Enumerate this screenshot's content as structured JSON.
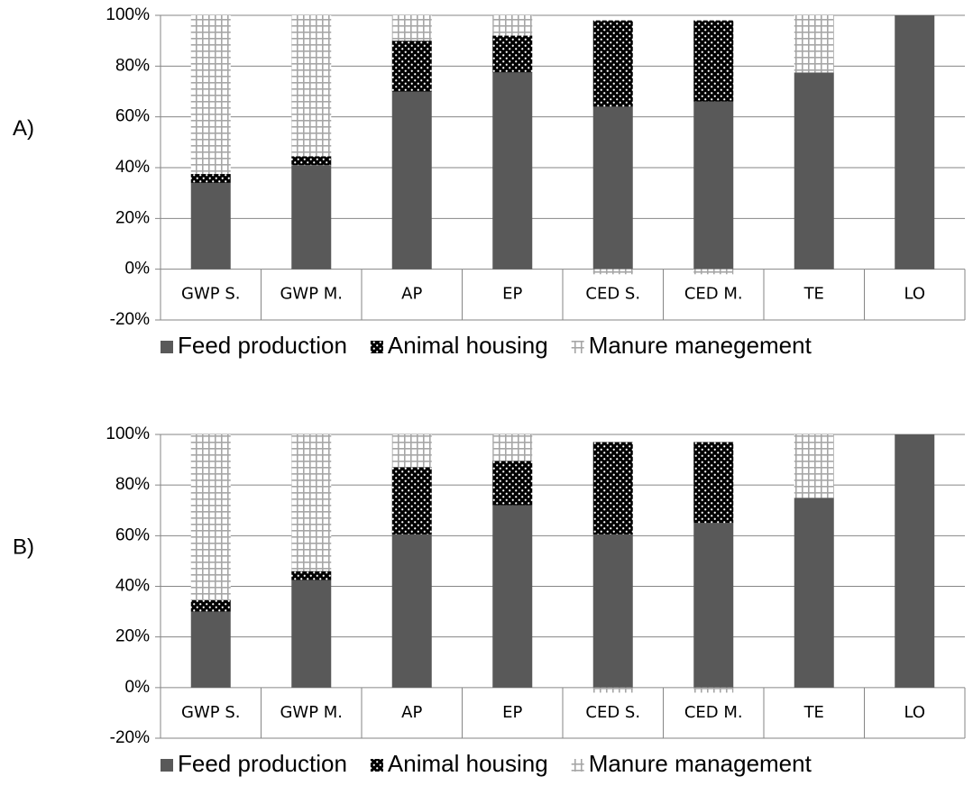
{
  "chart_data": [
    {
      "type": "bar",
      "stacked": true,
      "label": "A)",
      "categories": [
        "GWP S.",
        "GWP M.",
        "AP",
        "EP",
        "CED S.",
        "CED M.",
        "TE",
        "LO"
      ],
      "series": [
        {
          "name": "Feed production",
          "color": "#595959",
          "values": [
            34,
            41,
            70,
            77.5,
            64,
            66,
            77.5,
            100
          ]
        },
        {
          "name": "Animal housing",
          "color": "#000000",
          "values": [
            3.5,
            3.5,
            20,
            14.5,
            34,
            32,
            0,
            0
          ]
        },
        {
          "name": "Manure manegement",
          "color": "#a6a6a6",
          "values": [
            62.5,
            55.5,
            10,
            8,
            -2,
            -2,
            22.5,
            0
          ]
        }
      ],
      "ylim": [
        -20,
        100
      ],
      "yticks": [
        {
          "value": -20,
          "label": "-20%"
        },
        {
          "value": 0,
          "label": "0%"
        },
        {
          "value": 20,
          "label": "20%"
        },
        {
          "value": 40,
          "label": "40%"
        },
        {
          "value": 60,
          "label": "60%"
        },
        {
          "value": 80,
          "label": "80%"
        },
        {
          "value": 100,
          "label": "100%"
        }
      ],
      "grid": true,
      "legend": "bottom"
    },
    {
      "type": "bar",
      "stacked": true,
      "label": "B)",
      "categories": [
        "GWP S.",
        "GWP M.",
        "AP",
        "EP",
        "CED S.",
        "CED M.",
        "TE",
        "LO"
      ],
      "series": [
        {
          "name": "Feed production",
          "color": "#595959",
          "values": [
            30,
            42.5,
            60.5,
            72,
            60.5,
            65,
            75,
            100
          ]
        },
        {
          "name": "Animal housing",
          "color": "#000000",
          "values": [
            4.5,
            3.5,
            26.5,
            17.5,
            36.5,
            32,
            0,
            0
          ]
        },
        {
          "name": "Manure management",
          "color": "#a6a6a6",
          "values": [
            65.5,
            54,
            13,
            10.5,
            -2,
            -2,
            25,
            0
          ]
        }
      ],
      "ylim": [
        -20,
        100
      ],
      "yticks": [
        {
          "value": -20,
          "label": "-20%"
        },
        {
          "value": 0,
          "label": "0%"
        },
        {
          "value": 20,
          "label": "20%"
        },
        {
          "value": 40,
          "label": "40%"
        },
        {
          "value": 60,
          "label": "60%"
        },
        {
          "value": 80,
          "label": "80%"
        },
        {
          "value": 100,
          "label": "100%"
        }
      ],
      "grid": true,
      "legend": "bottom"
    }
  ]
}
